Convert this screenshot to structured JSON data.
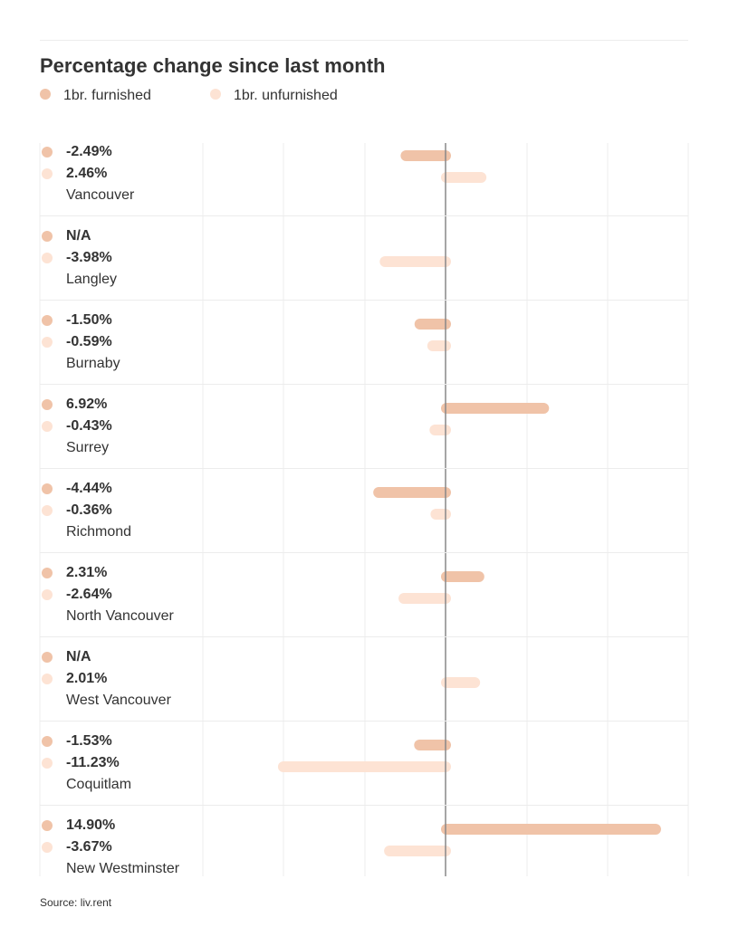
{
  "chart_data": {
    "type": "bar",
    "orientation": "horizontal",
    "title": "Percentage change since last month",
    "categories": [
      "Vancouver",
      "Langley",
      "Burnaby",
      "Surrey",
      "Richmond",
      "North Vancouver",
      "West Vancouver",
      "Coquitlam",
      "New Westminster"
    ],
    "series": [
      {
        "name": "1br. furnished",
        "color": "#f0c3a8",
        "values": [
          -2.49,
          null,
          -1.5,
          6.92,
          -4.44,
          2.31,
          null,
          -1.53,
          14.9
        ],
        "labels": [
          "-2.49%",
          "N/A",
          "-1.50%",
          "6.92%",
          "-4.44%",
          "2.31%",
          "N/A",
          "-1.53%",
          "14.90%"
        ]
      },
      {
        "name": "1br. unfurnished",
        "color": "#fde3d4",
        "values": [
          2.46,
          -3.98,
          -0.59,
          -0.43,
          -0.36,
          -2.64,
          2.01,
          -11.23,
          -3.67
        ],
        "labels": [
          "2.46%",
          "-3.98%",
          "-0.59%",
          "-0.43%",
          "-0.36%",
          "-2.64%",
          "2.01%",
          "-11.23%",
          "-3.67%"
        ]
      }
    ],
    "xlim": [
      -16,
      24
    ],
    "grid": true,
    "zero_line": true,
    "legend_position": "top-left"
  },
  "colors": {
    "furnished": "#f0c3a8",
    "unfurnished": "#fde3d4",
    "zero_line": "#888888",
    "grid": "#ececec"
  },
  "source": "Source: liv.rent"
}
